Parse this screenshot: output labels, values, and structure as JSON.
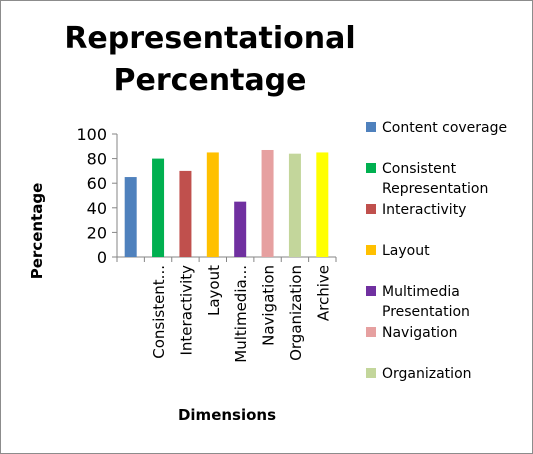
{
  "chart_data": {
    "type": "bar",
    "title_lines": [
      "Representational",
      "Percentage"
    ],
    "xlabel": "Dimensions",
    "ylabel": "Percentage",
    "ylim": [
      0,
      100
    ],
    "yticks": [
      0,
      20,
      40,
      60,
      80,
      100
    ],
    "grid": false,
    "legend_position": "right",
    "categories": [
      "Content coverage",
      "Consistent Representation",
      "Interactivity",
      "Layout",
      "Multimedia Presentation",
      "Navigation",
      "Organization",
      "Archive"
    ],
    "tick_labels": [
      "",
      "Consistent...",
      "Interactivity",
      "Layout",
      "Multimedia...",
      "Navigation",
      "Organization",
      "Archive"
    ],
    "values": [
      65,
      80,
      70,
      85,
      45,
      87,
      84,
      85
    ],
    "colors": [
      "#4f81bd",
      "#00b050",
      "#c0504d",
      "#ffc000",
      "#7030a0",
      "#e6a0a0",
      "#c3d69b",
      "#ffff00"
    ],
    "legend_entries": [
      {
        "label_lines": [
          "Content coverage"
        ],
        "color": "#4f81bd"
      },
      {
        "label_lines": [
          "Consistent",
          "Representation"
        ],
        "color": "#00b050"
      },
      {
        "label_lines": [
          "Interactivity"
        ],
        "color": "#c0504d"
      },
      {
        "label_lines": [
          "Layout"
        ],
        "color": "#ffc000"
      },
      {
        "label_lines": [
          "Multimedia",
          "Presentation"
        ],
        "color": "#7030a0"
      },
      {
        "label_lines": [
          "Navigation"
        ],
        "color": "#e6a0a0"
      },
      {
        "label_lines": [
          "Organization"
        ],
        "color": "#c3d69b"
      }
    ]
  }
}
